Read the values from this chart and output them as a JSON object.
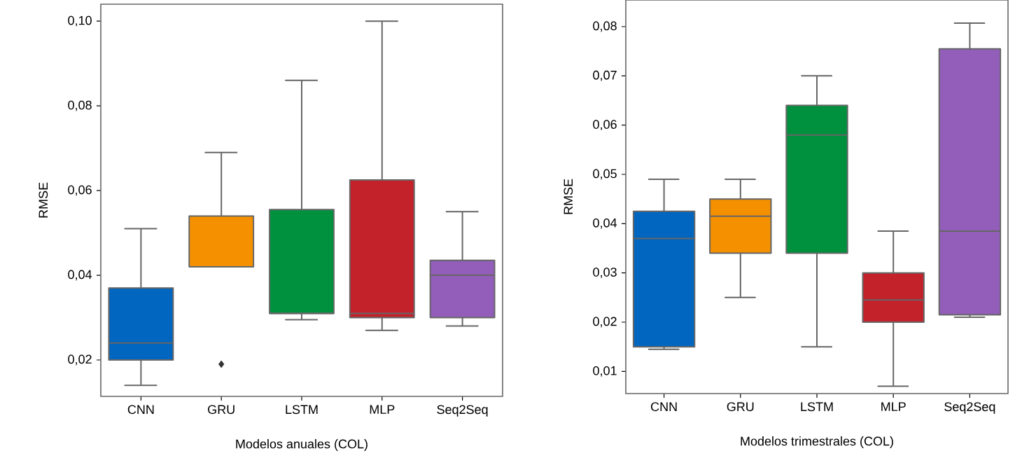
{
  "chart_data": [
    {
      "type": "box",
      "xlabel": "Modelos anuales (COL)",
      "ylabel": "RMSE",
      "categories": [
        "CNN",
        "GRU",
        "LSTM",
        "MLP",
        "Seq2Seq"
      ],
      "colors": [
        "#0066c0",
        "#f59100",
        "#00913f",
        "#c4222b",
        "#935dba"
      ],
      "boxes": [
        {
          "low": 0.014,
          "q1": 0.02,
          "median": 0.024,
          "q3": 0.037,
          "high": 0.051
        },
        {
          "low": 0.042,
          "q1": 0.042,
          "median": 0.042,
          "q3": 0.054,
          "high": 0.069,
          "outliers": [
            0.019
          ]
        },
        {
          "low": 0.0295,
          "q1": 0.031,
          "median": 0.031,
          "q3": 0.0555,
          "high": 0.086
        },
        {
          "low": 0.027,
          "q1": 0.03,
          "median": 0.031,
          "q3": 0.0625,
          "high": 0.1
        },
        {
          "low": 0.028,
          "q1": 0.03,
          "median": 0.04,
          "q3": 0.0435,
          "high": 0.055
        }
      ],
      "ylim": [
        0.0114,
        0.104
      ],
      "yticks": [
        {
          "value": 0.02,
          "label": "0,02"
        },
        {
          "value": 0.04,
          "label": "0,04"
        },
        {
          "value": 0.06,
          "label": "0,06"
        },
        {
          "value": 0.08,
          "label": "0,08"
        },
        {
          "value": 0.1,
          "label": "0,10"
        }
      ]
    },
    {
      "type": "box",
      "xlabel": "Modelos trimestrales (COL)",
      "ylabel": "RMSE",
      "categories": [
        "CNN",
        "GRU",
        "LSTM",
        "MLP",
        "Seq2Seq"
      ],
      "colors": [
        "#0066c0",
        "#f59100",
        "#00913f",
        "#c4222b",
        "#935dba"
      ],
      "boxes": [
        {
          "low": 0.0145,
          "q1": 0.015,
          "median": 0.037,
          "q3": 0.0425,
          "high": 0.049
        },
        {
          "low": 0.025,
          "q1": 0.034,
          "median": 0.0415,
          "q3": 0.045,
          "high": 0.049
        },
        {
          "low": 0.015,
          "q1": 0.034,
          "median": 0.058,
          "q3": 0.064,
          "high": 0.07
        },
        {
          "low": 0.007,
          "q1": 0.02,
          "median": 0.0245,
          "q3": 0.03,
          "high": 0.0385
        },
        {
          "low": 0.021,
          "q1": 0.0215,
          "median": 0.0385,
          "q3": 0.0755,
          "high": 0.0807
        }
      ],
      "ylim": [
        0.0055,
        0.0854
      ],
      "yticks": [
        {
          "value": 0.01,
          "label": "0,01"
        },
        {
          "value": 0.02,
          "label": "0,02"
        },
        {
          "value": 0.03,
          "label": "0,03"
        },
        {
          "value": 0.04,
          "label": "0,04"
        },
        {
          "value": 0.05,
          "label": "0,05"
        },
        {
          "value": 0.06,
          "label": "0,06"
        },
        {
          "value": 0.07,
          "label": "0,07"
        },
        {
          "value": 0.08,
          "label": "0,08"
        }
      ]
    }
  ]
}
